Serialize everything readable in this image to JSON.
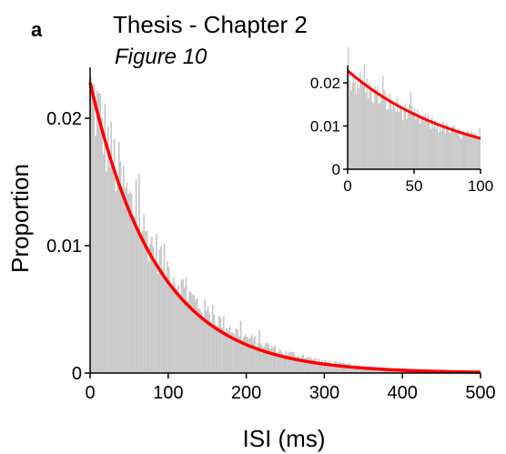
{
  "panel_label": "a",
  "title": "Thesis - Chapter 2",
  "subtitle": "Figure 10",
  "colors": {
    "histogram": "#c8c8c8",
    "fit": "#ff0000",
    "axis": "#000000"
  },
  "chart_data": [
    {
      "type": "bar",
      "role": "main",
      "xlabel": "ISI (ms)",
      "ylabel": "Proportion",
      "xlim": [
        0,
        500
      ],
      "ylim": [
        0,
        0.024
      ],
      "x_ticks": [
        0,
        100,
        200,
        300,
        400,
        500
      ],
      "x_tick_labels": [
        "0",
        "100",
        "200",
        "300",
        "400",
        "500"
      ],
      "y_ticks": [
        0,
        0.01,
        0.02
      ],
      "y_tick_labels": [
        "0",
        "0.01",
        "0.02"
      ],
      "bin_width_ms": 2,
      "histogram_envelope": {
        "x": [
          0,
          10,
          25,
          50,
          75,
          100,
          125,
          150,
          175,
          200,
          250,
          300,
          350,
          400,
          450,
          500
        ],
        "y": [
          0.0222,
          0.0205,
          0.0175,
          0.0135,
          0.0105,
          0.0082,
          0.0062,
          0.0048,
          0.0037,
          0.0028,
          0.0016,
          0.0009,
          0.0005,
          0.0003,
          0.0002,
          0.0001
        ]
      },
      "fit": {
        "type": "exponential",
        "a": 0.0228,
        "tau_ms": 86
      },
      "grid": false,
      "legend": "none"
    },
    {
      "type": "bar",
      "role": "inset",
      "xlim": [
        0,
        100
      ],
      "ylim": [
        0,
        0.024
      ],
      "x_ticks": [
        0,
        50,
        100
      ],
      "x_tick_labels": [
        "0",
        "50",
        "100"
      ],
      "y_ticks": [
        0,
        0.01,
        0.02
      ],
      "y_tick_labels": [
        "0",
        "0.01",
        "0.02"
      ],
      "bin_width_ms": 1,
      "fit": {
        "type": "exponential",
        "a": 0.0228,
        "tau_ms": 86
      },
      "grid": false,
      "legend": "none"
    }
  ]
}
